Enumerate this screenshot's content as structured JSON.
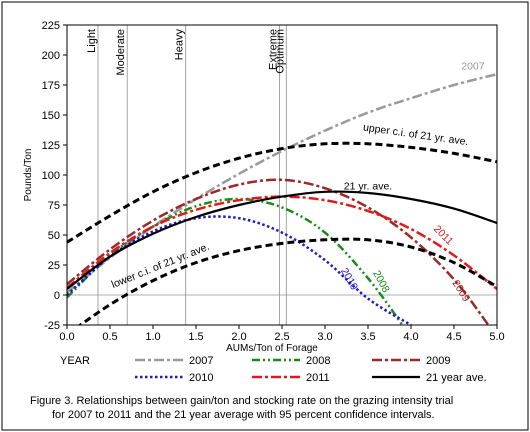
{
  "chart_data": {
    "type": "line",
    "xlabel": "AUMs/Ton of Forage",
    "ylabel": "Pounds/Ton",
    "xlim": [
      0,
      5
    ],
    "ylim": [
      -25,
      225
    ],
    "x_ticks": [
      0.0,
      0.5,
      1.0,
      1.5,
      2.0,
      2.5,
      3.0,
      3.5,
      4.0,
      4.5,
      5.0
    ],
    "x_tick_labels": [
      "0.0",
      "0.5",
      "1.0",
      "1.5",
      "2.0",
      "2.5",
      "3.0",
      "3.5",
      "4.0",
      "4.5",
      "5.0"
    ],
    "y_ticks": [
      -25,
      0,
      25,
      50,
      75,
      100,
      125,
      150,
      175,
      200,
      225
    ],
    "grid": "reference lines at y=0 and at intensity levels",
    "intensity_levels": [
      {
        "label": "Light",
        "x": 0.36
      },
      {
        "label": "Moderate",
        "x": 0.7
      },
      {
        "label": "Heavy",
        "x": 1.38
      },
      {
        "label": "Extreme",
        "x": 2.47
      },
      {
        "label": "Optimum",
        "x": 2.55
      }
    ],
    "legend_title": "YEAR",
    "legend_placement": "bottom",
    "series": [
      {
        "name": "2007",
        "color": "#9a9a9a",
        "dash": "dashdot",
        "width": 2.5,
        "x": [
          0,
          0.5,
          1,
          1.5,
          2,
          2.5,
          3,
          3.5,
          4,
          4.5,
          5
        ],
        "y": [
          2,
          31,
          57,
          80,
          101,
          120,
          137,
          152,
          164,
          175,
          184
        ],
        "label": "2007"
      },
      {
        "name": "2008",
        "color": "#1a8a1a",
        "dash": "dashdotdot",
        "width": 2.5,
        "x": [
          0,
          0.5,
          1,
          1.5,
          2,
          2.5,
          3,
          3.5,
          3.9
        ],
        "y": [
          -2,
          33,
          57,
          74,
          80,
          73,
          52,
          14,
          -25
        ],
        "label": "2008"
      },
      {
        "name": "2009",
        "color": "#9a2a2a",
        "dash": "dashdot",
        "width": 2.5,
        "x": [
          0,
          0.5,
          1,
          1.5,
          2,
          2.5,
          3,
          3.5,
          4,
          4.5,
          4.9
        ],
        "y": [
          9,
          38,
          62,
          80,
          92,
          96,
          89,
          73,
          48,
          13,
          -25
        ],
        "label": "2009"
      },
      {
        "name": "2010",
        "color": "#1a1ad0",
        "dash": "dotted",
        "width": 2.5,
        "x": [
          0,
          0.5,
          1,
          1.5,
          2,
          2.5,
          3,
          3.5,
          4
        ],
        "y": [
          0,
          32,
          53,
          64,
          64,
          52,
          29,
          -3,
          -25
        ],
        "label": "2010"
      },
      {
        "name": "2011",
        "color": "#e01a1a",
        "dash": "dashdot",
        "width": 2.5,
        "x": [
          0,
          0.5,
          1,
          1.5,
          2,
          2.5,
          3,
          3.5,
          4,
          4.5,
          5
        ],
        "y": [
          6,
          35,
          57,
          71,
          79,
          82,
          79,
          70,
          55,
          33,
          5
        ],
        "label": "2011"
      },
      {
        "name": "21 year ave.",
        "color": "#000000",
        "dash": "solid",
        "width": 2.2,
        "x": [
          0,
          0.5,
          1,
          1.5,
          2,
          2.5,
          3,
          3.5,
          4,
          4.5,
          5
        ],
        "y": [
          5,
          32,
          51,
          65,
          75,
          82,
          86,
          85,
          80,
          72,
          60
        ],
        "label": "21 yr. ave."
      },
      {
        "name": "upper c.i. of 21 yr. ave.",
        "color": "#000000",
        "dash": "dashed",
        "width": 3,
        "legend": false,
        "x": [
          0,
          0.5,
          1,
          1.5,
          2,
          2.5,
          3,
          3.5,
          4,
          4.5,
          5
        ],
        "y": [
          44,
          66,
          86,
          102,
          114,
          122,
          126,
          126,
          123,
          118,
          111
        ],
        "label": "upper c.i. of 21 yr. ave."
      },
      {
        "name": "lower c.i. of 21 yr. ave.",
        "color": "#000000",
        "dash": "dashed",
        "width": 3,
        "legend": false,
        "x": [
          0,
          0.5,
          1,
          1.5,
          2,
          2.5,
          3,
          3.5,
          4,
          4.5,
          5
        ],
        "y": [
          -33,
          -8,
          12,
          27,
          37,
          43,
          46,
          46,
          40,
          27,
          7
        ],
        "label": "lower c.i. of 21 yr. ave."
      }
    ],
    "legend_entries": [
      {
        "name": "2007",
        "series": 0
      },
      {
        "name": "2008",
        "series": 1
      },
      {
        "name": "2009",
        "series": 2
      },
      {
        "name": "2010",
        "series": 3
      },
      {
        "name": "2011",
        "series": 4
      },
      {
        "name": "21 year ave.",
        "series": 5
      }
    ]
  },
  "caption": {
    "line1": "Figure 3. Relationships between gain/ton and stocking rate on the grazing intensity trial",
    "line2": "for 2007 to 2011 and the 21 year average with 95 percent confidence intervals."
  }
}
